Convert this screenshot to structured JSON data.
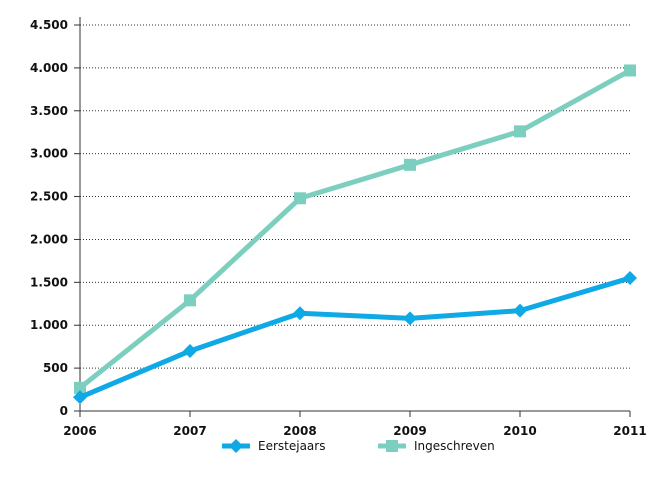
{
  "chart_data": {
    "type": "line",
    "categories": [
      "2006",
      "2007",
      "2008",
      "2009",
      "2010",
      "2011"
    ],
    "series": [
      {
        "name": "Eerstejaars",
        "values": [
          160,
          700,
          1140,
          1080,
          1170,
          1550
        ],
        "color": "#0fa9e6",
        "marker": "diamond"
      },
      {
        "name": "Ingeschreven",
        "values": [
          270,
          1290,
          2480,
          2870,
          3260,
          3970
        ],
        "color": "#7ccfbf",
        "marker": "square"
      }
    ],
    "ylim": [
      0,
      4500
    ],
    "yticks": [
      {
        "value": 0,
        "label": "0"
      },
      {
        "value": 500,
        "label": "500"
      },
      {
        "value": 1000,
        "label": "1.000"
      },
      {
        "value": 1500,
        "label": "1.500"
      },
      {
        "value": 2000,
        "label": "2.000"
      },
      {
        "value": 2500,
        "label": "2.500"
      },
      {
        "value": 3000,
        "label": "3.000"
      },
      {
        "value": 3500,
        "label": "3.500"
      },
      {
        "value": 4000,
        "label": "4.000"
      },
      {
        "value": 4500,
        "label": "4.500"
      }
    ],
    "title": "",
    "xlabel": "",
    "ylabel": "",
    "grid": "horizontal-dotted",
    "legend_position": "bottom-center"
  }
}
